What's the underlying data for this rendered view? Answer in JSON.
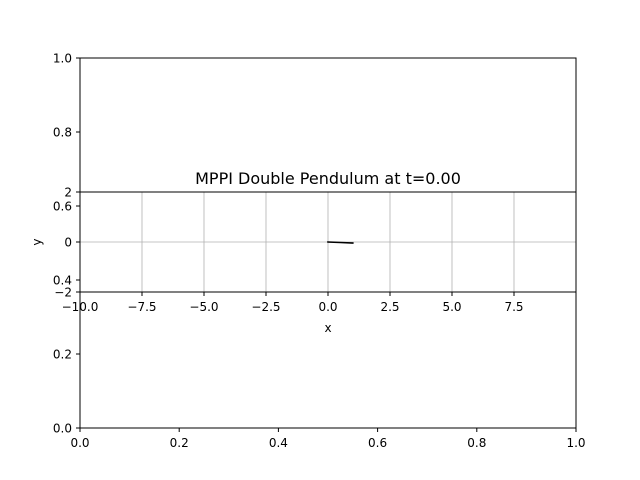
{
  "chart_data": [
    {
      "type": "line",
      "role": "background-axes",
      "title": "",
      "xlabel": "",
      "ylabel": "",
      "xlim": [
        0.0,
        1.0
      ],
      "ylim": [
        0.0,
        1.0
      ],
      "x_ticks": [
        {
          "value": 0.0,
          "label": "0.0"
        },
        {
          "value": 0.2,
          "label": "0.2"
        },
        {
          "value": 0.4,
          "label": "0.4"
        },
        {
          "value": 0.6,
          "label": "0.6"
        },
        {
          "value": 0.8,
          "label": "0.8"
        },
        {
          "value": 1.0,
          "label": "1.0"
        }
      ],
      "y_ticks": [
        {
          "value": 0.0,
          "label": "0.0"
        },
        {
          "value": 0.2,
          "label": "0.2"
        },
        {
          "value": 0.4,
          "label": "0.4"
        },
        {
          "value": 0.6,
          "label": "0.6"
        },
        {
          "value": 0.8,
          "label": "0.8"
        },
        {
          "value": 1.0,
          "label": "1.0"
        }
      ],
      "grid": false,
      "series": []
    },
    {
      "type": "line",
      "role": "pendulum-axes",
      "title": "MPPI Double Pendulum at t=0.00",
      "xlabel": "x",
      "ylabel": "y",
      "xlim": [
        -10.0,
        10.0
      ],
      "ylim": [
        -2.0,
        2.0
      ],
      "x_ticks": [
        {
          "value": -10.0,
          "label": "−10.0"
        },
        {
          "value": -7.5,
          "label": "−7.5"
        },
        {
          "value": -5.0,
          "label": "−5.0"
        },
        {
          "value": -2.5,
          "label": "−2.5"
        },
        {
          "value": 0.0,
          "label": "0.0"
        },
        {
          "value": 2.5,
          "label": "2.5"
        },
        {
          "value": 5.0,
          "label": "5.0"
        },
        {
          "value": 7.5,
          "label": "7.5"
        }
      ],
      "y_ticks": [
        {
          "value": -2,
          "label": "−2"
        },
        {
          "value": 0,
          "label": "0"
        },
        {
          "value": 2,
          "label": "2"
        }
      ],
      "grid": true,
      "series": [
        {
          "color": "#000000",
          "x": [
            0.0,
            0.5,
            1.0
          ],
          "y": [
            0.0,
            -0.02,
            -0.04
          ]
        }
      ]
    }
  ]
}
